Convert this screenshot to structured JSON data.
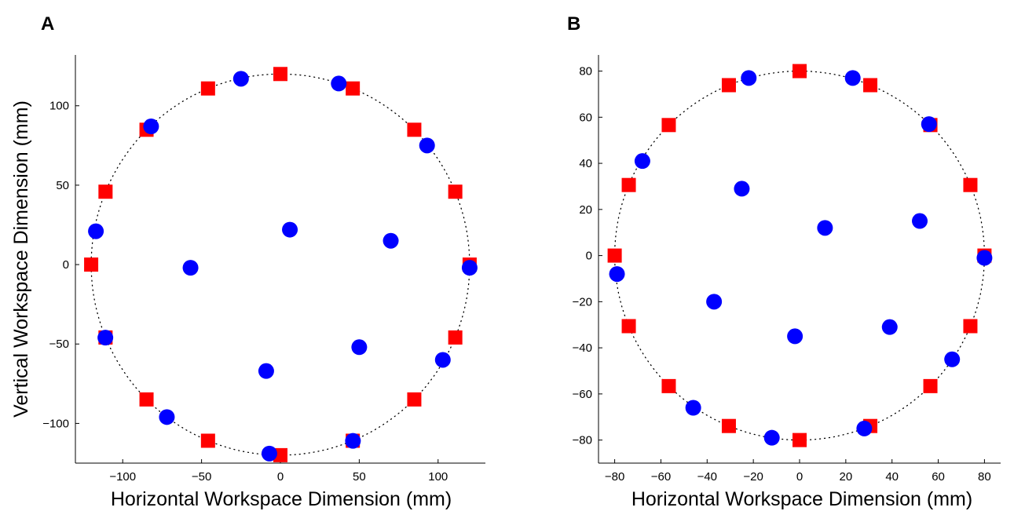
{
  "chart_data": [
    {
      "panel": "A",
      "type": "scatter",
      "xlabel": "Horizontal Workspace Dimension (mm)",
      "ylabel": "Vertical Workspace Dimension (mm)",
      "xlim": [
        -130,
        130
      ],
      "ylim": [
        -125,
        132
      ],
      "xticks": [
        -100,
        -50,
        0,
        50,
        100
      ],
      "yticks": [
        -100,
        -50,
        0,
        50,
        100
      ],
      "xtick_labels": [
        "−100",
        "−50",
        "0",
        "50",
        "100"
      ],
      "ytick_labels": [
        "−100",
        "−50",
        "0",
        "50",
        "100"
      ],
      "grid": false,
      "circle_radius": 120,
      "series": [
        {
          "marker": "square",
          "color": "#ff0000",
          "points": [
            [
              120,
              0
            ],
            [
              110.9,
              45.9
            ],
            [
              84.9,
              84.9
            ],
            [
              45.9,
              110.9
            ],
            [
              0,
              120
            ],
            [
              -45.9,
              110.9
            ],
            [
              -84.9,
              84.9
            ],
            [
              -110.9,
              45.9
            ],
            [
              -120,
              0
            ],
            [
              -110.9,
              -45.9
            ],
            [
              -84.9,
              -84.9
            ],
            [
              -45.9,
              -110.9
            ],
            [
              0,
              -120
            ],
            [
              45.9,
              -110.9
            ],
            [
              84.9,
              -84.9
            ],
            [
              110.9,
              -45.9
            ]
          ]
        },
        {
          "marker": "circle",
          "color": "#0000ff",
          "points": [
            [
              -25,
              117
            ],
            [
              37,
              114
            ],
            [
              -82,
              87
            ],
            [
              93,
              75
            ],
            [
              -117,
              21
            ],
            [
              6,
              22
            ],
            [
              70,
              15
            ],
            [
              -57,
              -2
            ],
            [
              120,
              -2
            ],
            [
              -111,
              -46
            ],
            [
              50,
              -52
            ],
            [
              103,
              -60
            ],
            [
              -9,
              -67
            ],
            [
              -72,
              -96
            ],
            [
              46,
              -111
            ],
            [
              -7,
              -119
            ]
          ]
        }
      ]
    },
    {
      "panel": "B",
      "type": "scatter",
      "xlabel": "Horizontal Workspace Dimension (mm)",
      "ylabel": "",
      "xlim": [
        -87,
        87
      ],
      "ylim": [
        -90,
        87
      ],
      "xticks": [
        -80,
        -60,
        -40,
        -20,
        0,
        20,
        40,
        60,
        80
      ],
      "yticks": [
        -80,
        -60,
        -40,
        -20,
        0,
        20,
        40,
        60,
        80
      ],
      "xtick_labels": [
        "−80",
        "−60",
        "−40",
        "−20",
        "0",
        "20",
        "40",
        "60",
        "80"
      ],
      "ytick_labels": [
        "−80",
        "−60",
        "−40",
        "−20",
        "0",
        "20",
        "40",
        "60",
        "80"
      ],
      "grid": false,
      "circle_radius": 80,
      "series": [
        {
          "marker": "square",
          "color": "#ff0000",
          "points": [
            [
              80,
              0
            ],
            [
              73.9,
              30.6
            ],
            [
              56.6,
              56.6
            ],
            [
              30.6,
              73.9
            ],
            [
              0,
              80
            ],
            [
              -30.6,
              73.9
            ],
            [
              -56.6,
              56.6
            ],
            [
              -73.9,
              30.6
            ],
            [
              -80,
              0
            ],
            [
              -73.9,
              -30.6
            ],
            [
              -56.6,
              -56.6
            ],
            [
              -30.6,
              -73.9
            ],
            [
              0,
              -80
            ],
            [
              30.6,
              -73.9
            ],
            [
              56.6,
              -56.6
            ],
            [
              73.9,
              -30.6
            ]
          ]
        },
        {
          "marker": "circle",
          "color": "#0000ff",
          "points": [
            [
              -22,
              77
            ],
            [
              23,
              77
            ],
            [
              56,
              57
            ],
            [
              -68,
              41
            ],
            [
              -25,
              29
            ],
            [
              11,
              12
            ],
            [
              52,
              15
            ],
            [
              80,
              -1
            ],
            [
              -79,
              -8
            ],
            [
              -37,
              -20
            ],
            [
              -2,
              -35
            ],
            [
              39,
              -31
            ],
            [
              66,
              -45
            ],
            [
              -46,
              -66
            ],
            [
              -12,
              -79
            ],
            [
              28,
              -75
            ]
          ]
        }
      ]
    }
  ]
}
